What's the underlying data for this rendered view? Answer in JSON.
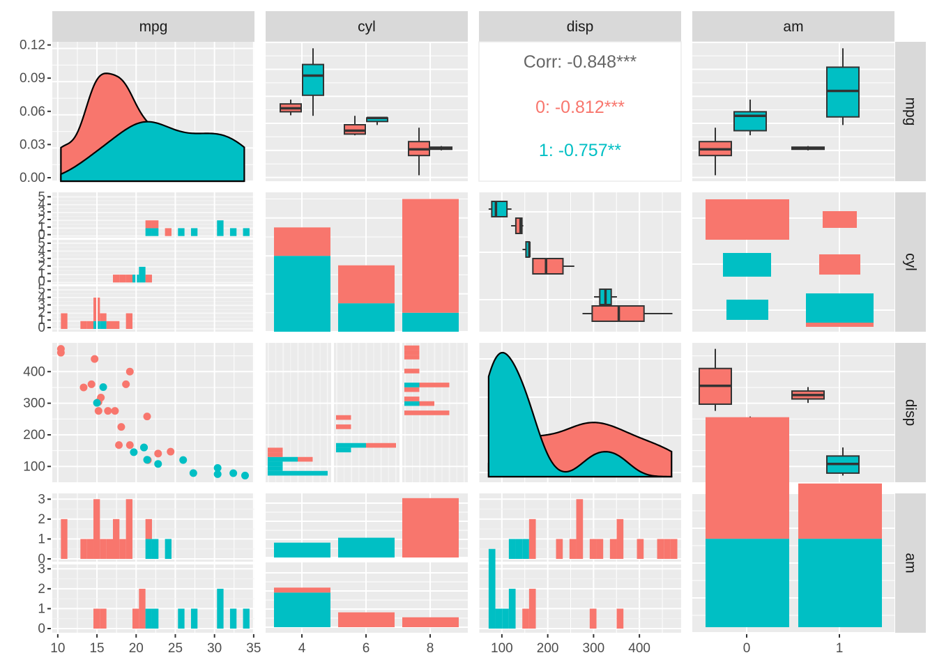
{
  "chart_data": {
    "type": "pairs",
    "title": "",
    "variables": [
      "mpg",
      "cyl",
      "disp",
      "am"
    ],
    "color_by": "am",
    "groups": [
      {
        "name": "0",
        "color": "#F8766D"
      },
      {
        "name": "1",
        "color": "#00BFC4"
      }
    ],
    "colors": {
      "panel_bg": "#EBEBEB",
      "grid": "#FFFFFF",
      "strip_bg": "#D9D9D9",
      "outline": "#333333",
      "corr_text": "#666666"
    },
    "axes": {
      "mpg": {
        "range": [
          9.3,
          35.1
        ],
        "ticks": [
          10,
          15,
          20,
          25,
          30,
          35
        ],
        "tick_labels": [
          "10",
          "15",
          "20",
          "25",
          "30",
          "35"
        ]
      },
      "cyl": {
        "type": "discrete",
        "levels": [
          "4",
          "6",
          "8"
        ]
      },
      "disp": {
        "range": [
          50,
          491
        ],
        "ticks": [
          100,
          200,
          300,
          400
        ],
        "tick_labels": [
          "100",
          "200",
          "300",
          "400"
        ]
      },
      "am": {
        "type": "discrete",
        "levels": [
          "0",
          "1"
        ]
      },
      "density_y": {
        "range": [
          0,
          0.126
        ],
        "ticks": [
          0,
          0.03,
          0.06,
          0.09,
          0.12
        ],
        "tick_labels": [
          "0.00",
          "0.03",
          "0.06",
          "0.09",
          "0.12"
        ]
      },
      "count_y_small": {
        "ticks": [
          0,
          1,
          2,
          3,
          4,
          5
        ],
        "tick_labels": [
          "0",
          "1",
          "2",
          "3",
          "4",
          "5"
        ]
      },
      "count_y_am": {
        "ticks": [
          0,
          1,
          2,
          3
        ],
        "tick_labels": [
          "0",
          "1",
          "2",
          "3"
        ]
      }
    },
    "correlation": {
      "pair": [
        "mpg",
        "disp"
      ],
      "overall": "Corr: -0.848***",
      "by_group": [
        {
          "group": "0",
          "label": "0: -0.812***"
        },
        {
          "group": "1",
          "label": "1: -0.757**"
        }
      ]
    },
    "points": [
      {
        "mpg": 21.0,
        "cyl": 6,
        "disp": 160,
        "am": 1
      },
      {
        "mpg": 21.0,
        "cyl": 6,
        "disp": 160,
        "am": 1
      },
      {
        "mpg": 22.8,
        "cyl": 4,
        "disp": 108,
        "am": 1
      },
      {
        "mpg": 21.4,
        "cyl": 6,
        "disp": 258,
        "am": 0
      },
      {
        "mpg": 18.7,
        "cyl": 8,
        "disp": 360,
        "am": 0
      },
      {
        "mpg": 18.1,
        "cyl": 6,
        "disp": 225,
        "am": 0
      },
      {
        "mpg": 14.3,
        "cyl": 8,
        "disp": 360,
        "am": 0
      },
      {
        "mpg": 24.4,
        "cyl": 4,
        "disp": 146.7,
        "am": 0
      },
      {
        "mpg": 22.8,
        "cyl": 4,
        "disp": 140.8,
        "am": 0
      },
      {
        "mpg": 19.2,
        "cyl": 6,
        "disp": 167.6,
        "am": 0
      },
      {
        "mpg": 17.8,
        "cyl": 6,
        "disp": 167.6,
        "am": 0
      },
      {
        "mpg": 16.4,
        "cyl": 8,
        "disp": 275.8,
        "am": 0
      },
      {
        "mpg": 17.3,
        "cyl": 8,
        "disp": 275.8,
        "am": 0
      },
      {
        "mpg": 15.2,
        "cyl": 8,
        "disp": 275.8,
        "am": 0
      },
      {
        "mpg": 10.4,
        "cyl": 8,
        "disp": 472,
        "am": 0
      },
      {
        "mpg": 10.4,
        "cyl": 8,
        "disp": 460,
        "am": 0
      },
      {
        "mpg": 14.7,
        "cyl": 8,
        "disp": 440,
        "am": 0
      },
      {
        "mpg": 32.4,
        "cyl": 4,
        "disp": 78.7,
        "am": 1
      },
      {
        "mpg": 30.4,
        "cyl": 4,
        "disp": 75.7,
        "am": 1
      },
      {
        "mpg": 33.9,
        "cyl": 4,
        "disp": 71.1,
        "am": 1
      },
      {
        "mpg": 21.5,
        "cyl": 4,
        "disp": 120.1,
        "am": 0
      },
      {
        "mpg": 15.5,
        "cyl": 8,
        "disp": 318,
        "am": 0
      },
      {
        "mpg": 15.2,
        "cyl": 8,
        "disp": 304,
        "am": 0
      },
      {
        "mpg": 13.3,
        "cyl": 8,
        "disp": 350,
        "am": 0
      },
      {
        "mpg": 19.2,
        "cyl": 8,
        "disp": 400,
        "am": 0
      },
      {
        "mpg": 27.3,
        "cyl": 4,
        "disp": 79,
        "am": 1
      },
      {
        "mpg": 26.0,
        "cyl": 4,
        "disp": 120.3,
        "am": 1
      },
      {
        "mpg": 30.4,
        "cyl": 4,
        "disp": 95.1,
        "am": 1
      },
      {
        "mpg": 15.8,
        "cyl": 8,
        "disp": 351,
        "am": 1
      },
      {
        "mpg": 19.7,
        "cyl": 6,
        "disp": 145,
        "am": 1
      },
      {
        "mpg": 15.0,
        "cyl": 8,
        "disp": 301,
        "am": 1
      },
      {
        "mpg": 21.4,
        "cyl": 4,
        "disp": 121,
        "am": 1
      }
    ],
    "panels": [
      {
        "row": "mpg",
        "col": "mpg",
        "type": "density"
      },
      {
        "row": "mpg",
        "col": "cyl",
        "type": "boxplot"
      },
      {
        "row": "mpg",
        "col": "disp",
        "type": "correlation"
      },
      {
        "row": "mpg",
        "col": "am",
        "type": "boxplot"
      },
      {
        "row": "cyl",
        "col": "mpg",
        "type": "faceted-histogram"
      },
      {
        "row": "cyl",
        "col": "cyl",
        "type": "stacked-bar"
      },
      {
        "row": "cyl",
        "col": "disp",
        "type": "horizontal-boxplot"
      },
      {
        "row": "cyl",
        "col": "am",
        "type": "tile"
      },
      {
        "row": "disp",
        "col": "mpg",
        "type": "scatter"
      },
      {
        "row": "disp",
        "col": "cyl",
        "type": "faceted-histogram-horizontal"
      },
      {
        "row": "disp",
        "col": "disp",
        "type": "density"
      },
      {
        "row": "disp",
        "col": "am",
        "type": "boxplot"
      },
      {
        "row": "am",
        "col": "mpg",
        "type": "faceted-histogram"
      },
      {
        "row": "am",
        "col": "cyl",
        "type": "faceted-bar"
      },
      {
        "row": "am",
        "col": "disp",
        "type": "faceted-histogram"
      },
      {
        "row": "am",
        "col": "am",
        "type": "stacked-bar"
      }
    ]
  }
}
